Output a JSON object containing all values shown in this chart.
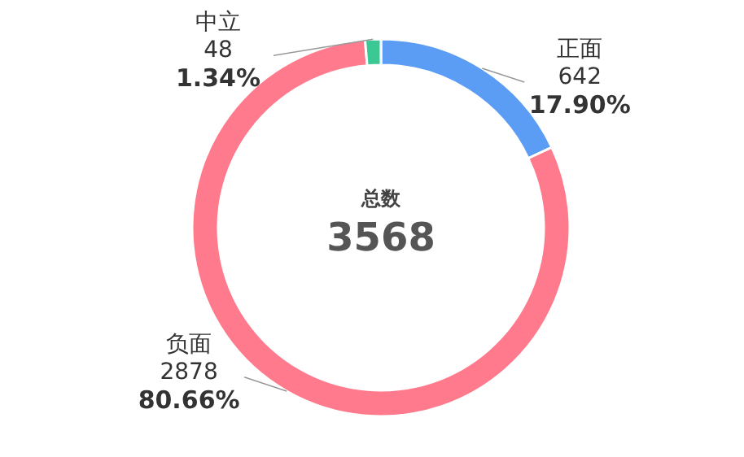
{
  "chart_data": {
    "type": "donut",
    "categories": [
      "正面",
      "负面",
      "中立"
    ],
    "values": [
      642,
      2878,
      48
    ],
    "colors": [
      "#5b9cf4",
      "#ff7a8c",
      "#3cc894"
    ],
    "value_labels": [
      "642\n17.90%",
      "2878\n80.66%",
      "48\n1.34%"
    ],
    "annotations": [
      "总数",
      "3568"
    ]
  }
}
